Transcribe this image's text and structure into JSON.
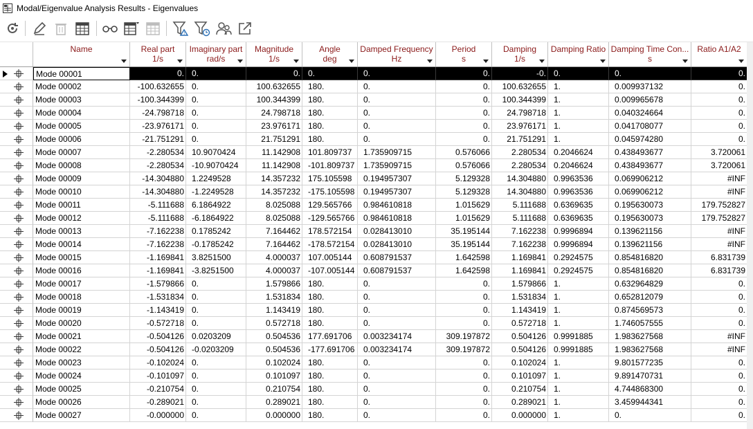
{
  "window": {
    "title": "Modal/Eigenvalue Analysis Results - Eigenvalues"
  },
  "toolbar": {
    "buttons": [
      "refresh-icon",
      "edit-icon",
      "delete-icon",
      "table-icon",
      "glasses-icon",
      "table-settings-icon",
      "table-disabled-icon",
      "filter-warning-icon",
      "filter-time-icon",
      "user-group-icon",
      "export-icon"
    ]
  },
  "columns": [
    {
      "key": "name",
      "title": "Name",
      "unit": ""
    },
    {
      "key": "real",
      "title": "Real part",
      "unit": "1/s"
    },
    {
      "key": "imag",
      "title": "Imaginary part",
      "unit": "rad/s"
    },
    {
      "key": "mag",
      "title": "Magnitude",
      "unit": "1/s"
    },
    {
      "key": "angle",
      "title": "Angle",
      "unit": "deg"
    },
    {
      "key": "dfreq",
      "title": "Damped Frequency",
      "unit": "Hz"
    },
    {
      "key": "period",
      "title": "Period",
      "unit": "s"
    },
    {
      "key": "damp",
      "title": "Damping",
      "unit": "1/s"
    },
    {
      "key": "dratio",
      "title": "Damping Ratio",
      "unit": ""
    },
    {
      "key": "dtc",
      "title": "Damping Time Con...",
      "unit": "s"
    },
    {
      "key": "ratio",
      "title": "Ratio A1/A2",
      "unit": ""
    }
  ],
  "rows": [
    {
      "name": "Mode 00001",
      "real": "0.",
      "imag": "0.",
      "mag": "0.",
      "angle": "0.",
      "dfreq": "0.",
      "period": "0.",
      "damp": "-0.",
      "dratio": "0.",
      "dtc": "0.",
      "ratio": "0."
    },
    {
      "name": "Mode 00002",
      "real": "-100.632655",
      "imag": "0.",
      "mag": "100.632655",
      "angle": "180.",
      "dfreq": "0.",
      "period": "0.",
      "damp": "100.632655",
      "dratio": "1.",
      "dtc": "0.009937132",
      "ratio": "0."
    },
    {
      "name": "Mode 00003",
      "real": "-100.344399",
      "imag": "0.",
      "mag": "100.344399",
      "angle": "180.",
      "dfreq": "0.",
      "period": "0.",
      "damp": "100.344399",
      "dratio": "1.",
      "dtc": "0.009965678",
      "ratio": "0."
    },
    {
      "name": "Mode 00004",
      "real": "-24.798718",
      "imag": "0.",
      "mag": "24.798718",
      "angle": "180.",
      "dfreq": "0.",
      "period": "0.",
      "damp": "24.798718",
      "dratio": "1.",
      "dtc": "0.040324664",
      "ratio": "0."
    },
    {
      "name": "Mode 00005",
      "real": "-23.976171",
      "imag": "0.",
      "mag": "23.976171",
      "angle": "180.",
      "dfreq": "0.",
      "period": "0.",
      "damp": "23.976171",
      "dratio": "1.",
      "dtc": "0.041708077",
      "ratio": "0."
    },
    {
      "name": "Mode 00006",
      "real": "-21.751291",
      "imag": "0.",
      "mag": "21.751291",
      "angle": "180.",
      "dfreq": "0.",
      "period": "0.",
      "damp": "21.751291",
      "dratio": "1.",
      "dtc": "0.045974280",
      "ratio": "0."
    },
    {
      "name": "Mode 00007",
      "real": "-2.280534",
      "imag": "10.9070424",
      "mag": "11.142908",
      "angle": "101.809737",
      "dfreq": "1.735909715",
      "period": "0.576066",
      "damp": "2.280534",
      "dratio": "0.2046624",
      "dtc": "0.438493677",
      "ratio": "3.720061"
    },
    {
      "name": "Mode 00008",
      "real": "-2.280534",
      "imag": "-10.9070424",
      "mag": "11.142908",
      "angle": "-101.809737",
      "dfreq": "1.735909715",
      "period": "0.576066",
      "damp": "2.280534",
      "dratio": "0.2046624",
      "dtc": "0.438493677",
      "ratio": "3.720061"
    },
    {
      "name": "Mode 00009",
      "real": "-14.304880",
      "imag": "1.2249528",
      "mag": "14.357232",
      "angle": "175.105598",
      "dfreq": "0.194957307",
      "period": "5.129328",
      "damp": "14.304880",
      "dratio": "0.9963536",
      "dtc": "0.069906212",
      "ratio": "#INF"
    },
    {
      "name": "Mode 00010",
      "real": "-14.304880",
      "imag": "-1.2249528",
      "mag": "14.357232",
      "angle": "-175.105598",
      "dfreq": "0.194957307",
      "period": "5.129328",
      "damp": "14.304880",
      "dratio": "0.9963536",
      "dtc": "0.069906212",
      "ratio": "#INF"
    },
    {
      "name": "Mode 00011",
      "real": "-5.111688",
      "imag": "6.1864922",
      "mag": "8.025088",
      "angle": "129.565766",
      "dfreq": "0.984610818",
      "period": "1.015629",
      "damp": "5.111688",
      "dratio": "0.6369635",
      "dtc": "0.195630073",
      "ratio": "179.752827"
    },
    {
      "name": "Mode 00012",
      "real": "-5.111688",
      "imag": "-6.1864922",
      "mag": "8.025088",
      "angle": "-129.565766",
      "dfreq": "0.984610818",
      "period": "1.015629",
      "damp": "5.111688",
      "dratio": "0.6369635",
      "dtc": "0.195630073",
      "ratio": "179.752827"
    },
    {
      "name": "Mode 00013",
      "real": "-7.162238",
      "imag": "0.1785242",
      "mag": "7.164462",
      "angle": "178.572154",
      "dfreq": "0.028413010",
      "period": "35.195144",
      "damp": "7.162238",
      "dratio": "0.9996894",
      "dtc": "0.139621156",
      "ratio": "#INF"
    },
    {
      "name": "Mode 00014",
      "real": "-7.162238",
      "imag": "-0.1785242",
      "mag": "7.164462",
      "angle": "-178.572154",
      "dfreq": "0.028413010",
      "period": "35.195144",
      "damp": "7.162238",
      "dratio": "0.9996894",
      "dtc": "0.139621156",
      "ratio": "#INF"
    },
    {
      "name": "Mode 00015",
      "real": "-1.169841",
      "imag": "3.8251500",
      "mag": "4.000037",
      "angle": "107.005144",
      "dfreq": "0.608791537",
      "period": "1.642598",
      "damp": "1.169841",
      "dratio": "0.2924575",
      "dtc": "0.854816820",
      "ratio": "6.831739"
    },
    {
      "name": "Mode 00016",
      "real": "-1.169841",
      "imag": "-3.8251500",
      "mag": "4.000037",
      "angle": "-107.005144",
      "dfreq": "0.608791537",
      "period": "1.642598",
      "damp": "1.169841",
      "dratio": "0.2924575",
      "dtc": "0.854816820",
      "ratio": "6.831739"
    },
    {
      "name": "Mode 00017",
      "real": "-1.579866",
      "imag": "0.",
      "mag": "1.579866",
      "angle": "180.",
      "dfreq": "0.",
      "period": "0.",
      "damp": "1.579866",
      "dratio": "1.",
      "dtc": "0.632964829",
      "ratio": "0."
    },
    {
      "name": "Mode 00018",
      "real": "-1.531834",
      "imag": "0.",
      "mag": "1.531834",
      "angle": "180.",
      "dfreq": "0.",
      "period": "0.",
      "damp": "1.531834",
      "dratio": "1.",
      "dtc": "0.652812079",
      "ratio": "0."
    },
    {
      "name": "Mode 00019",
      "real": "-1.143419",
      "imag": "0.",
      "mag": "1.143419",
      "angle": "180.",
      "dfreq": "0.",
      "period": "0.",
      "damp": "1.143419",
      "dratio": "1.",
      "dtc": "0.874569573",
      "ratio": "0."
    },
    {
      "name": "Mode 00020",
      "real": "-0.572718",
      "imag": "0.",
      "mag": "0.572718",
      "angle": "180.",
      "dfreq": "0.",
      "period": "0.",
      "damp": "0.572718",
      "dratio": "1.",
      "dtc": "1.746057555",
      "ratio": "0."
    },
    {
      "name": "Mode 00021",
      "real": "-0.504126",
      "imag": "0.0203209",
      "mag": "0.504536",
      "angle": "177.691706",
      "dfreq": "0.003234174",
      "period": "309.197872",
      "damp": "0.504126",
      "dratio": "0.9991885",
      "dtc": "1.983627568",
      "ratio": "#INF"
    },
    {
      "name": "Mode 00022",
      "real": "-0.504126",
      "imag": "-0.0203209",
      "mag": "0.504536",
      "angle": "-177.691706",
      "dfreq": "0.003234174",
      "period": "309.197872",
      "damp": "0.504126",
      "dratio": "0.9991885",
      "dtc": "1.983627568",
      "ratio": "#INF"
    },
    {
      "name": "Mode 00023",
      "real": "-0.102024",
      "imag": "0.",
      "mag": "0.102024",
      "angle": "180.",
      "dfreq": "0.",
      "period": "0.",
      "damp": "0.102024",
      "dratio": "1.",
      "dtc": "9.801577235",
      "ratio": "0."
    },
    {
      "name": "Mode 00024",
      "real": "-0.101097",
      "imag": "0.",
      "mag": "0.101097",
      "angle": "180.",
      "dfreq": "0.",
      "period": "0.",
      "damp": "0.101097",
      "dratio": "1.",
      "dtc": "9.891470731",
      "ratio": "0."
    },
    {
      "name": "Mode 00025",
      "real": "-0.210754",
      "imag": "0.",
      "mag": "0.210754",
      "angle": "180.",
      "dfreq": "0.",
      "period": "0.",
      "damp": "0.210754",
      "dratio": "1.",
      "dtc": "4.744868300",
      "ratio": "0."
    },
    {
      "name": "Mode 00026",
      "real": "-0.289021",
      "imag": "0.",
      "mag": "0.289021",
      "angle": "180.",
      "dfreq": "0.",
      "period": "0.",
      "damp": "0.289021",
      "dratio": "1.",
      "dtc": "3.459944341",
      "ratio": "0."
    },
    {
      "name": "Mode 00027",
      "real": "-0.000000",
      "imag": "0.",
      "mag": "0.000000",
      "angle": "180.",
      "dfreq": "0.",
      "period": "0.",
      "damp": "0.000000",
      "dratio": "1.",
      "dtc": "0.",
      "ratio": "0."
    }
  ],
  "colors": {
    "header_text": "#8b1a1a",
    "selected_bg": "#000000",
    "selected_fg": "#ffffff"
  }
}
